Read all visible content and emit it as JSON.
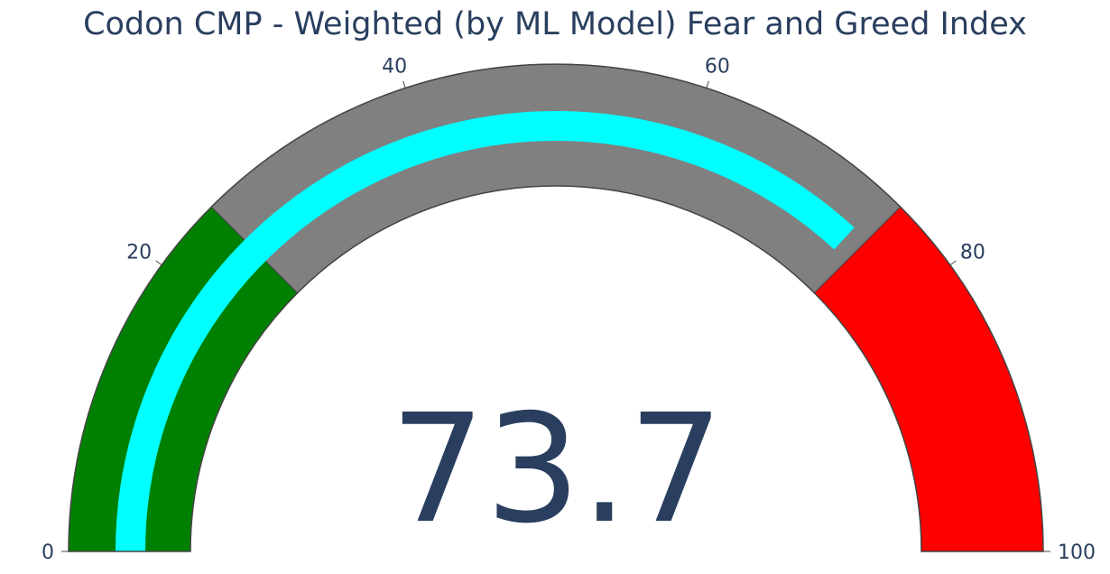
{
  "chart_data": {
    "type": "gauge",
    "title": "Codon CMP - Weighted (by ML Model) Fear and Greed Index",
    "value": 73.7,
    "value_label": "73.7",
    "range": [
      0,
      100
    ],
    "ticks": [
      {
        "value": 0,
        "label": "0"
      },
      {
        "value": 20,
        "label": "20"
      },
      {
        "value": 40,
        "label": "40"
      },
      {
        "value": 60,
        "label": "60"
      },
      {
        "value": 80,
        "label": "80"
      },
      {
        "value": 100,
        "label": "100"
      }
    ],
    "steps": [
      {
        "range": [
          0,
          25
        ],
        "color": "#008000"
      },
      {
        "range": [
          25,
          75
        ],
        "color": "#808080"
      },
      {
        "range": [
          75,
          100
        ],
        "color": "#ff0000"
      }
    ],
    "bar_color": "#00ffff",
    "border_color": "#444444"
  }
}
